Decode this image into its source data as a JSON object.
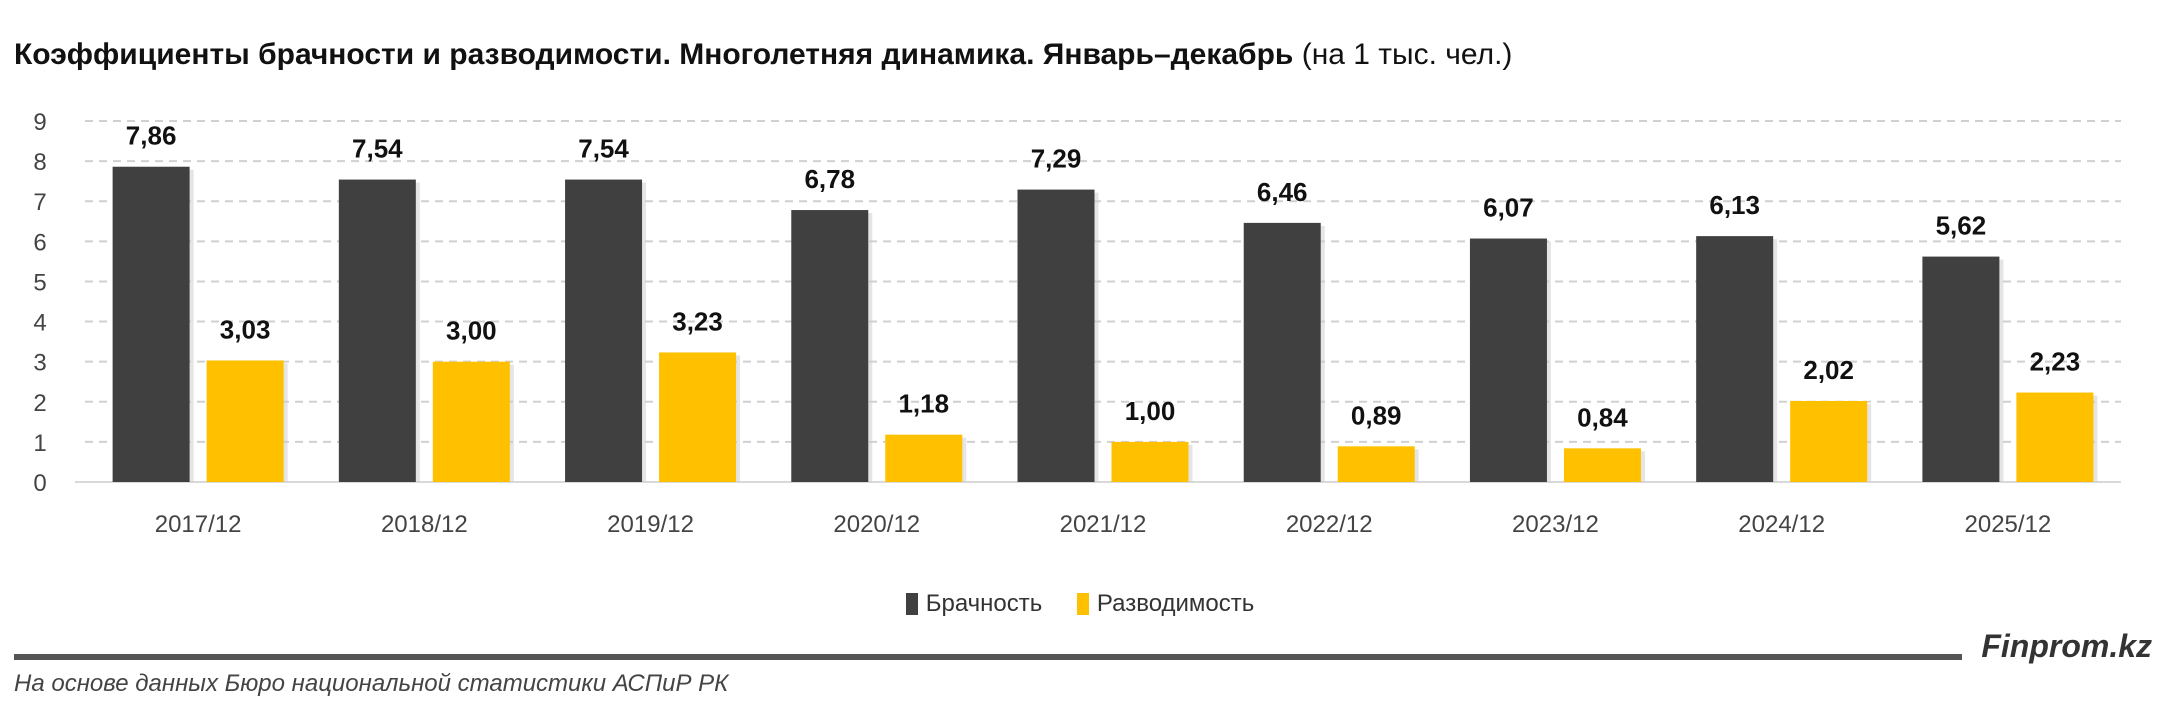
{
  "chart_data": {
    "type": "bar",
    "title": "Коэффициенты брачности и разводимости. Многолетняя динамика. Январь–декабрь",
    "subtitle": "(на 1 тыс. чел.)",
    "categories": [
      "2017/12",
      "2018/12",
      "2019/12",
      "2020/12",
      "2021/12",
      "2022/12",
      "2023/12",
      "2024/12",
      "2025/12"
    ],
    "series": [
      {
        "name": "Брачность",
        "color": "#404040",
        "values": [
          7.86,
          7.54,
          7.54,
          6.78,
          7.29,
          6.46,
          6.07,
          6.13,
          5.62
        ],
        "labels": [
          "7,86",
          "7,54",
          "7,54",
          "6,78",
          "7,29",
          "6,46",
          "6,07",
          "6,13",
          "5,62"
        ]
      },
      {
        "name": "Разводимость",
        "color": "#FFC000",
        "values": [
          3.03,
          3.0,
          3.23,
          1.18,
          1.0,
          0.89,
          0.84,
          2.02,
          2.23
        ],
        "labels": [
          "3,03",
          "3,00",
          "3,23",
          "1,18",
          "1,00",
          "0,89",
          "0,84",
          "2,02",
          "2,23"
        ]
      }
    ],
    "ylim": [
      0,
      9
    ],
    "yticks": [
      "0",
      "1",
      "2",
      "3",
      "4",
      "5",
      "6",
      "7",
      "8",
      "9"
    ],
    "grid": true,
    "legend": "bottom"
  },
  "footer": {
    "brand": "Finprom.kz",
    "source": "На основе данных Бюро национальной статистики АСПиР РК"
  }
}
